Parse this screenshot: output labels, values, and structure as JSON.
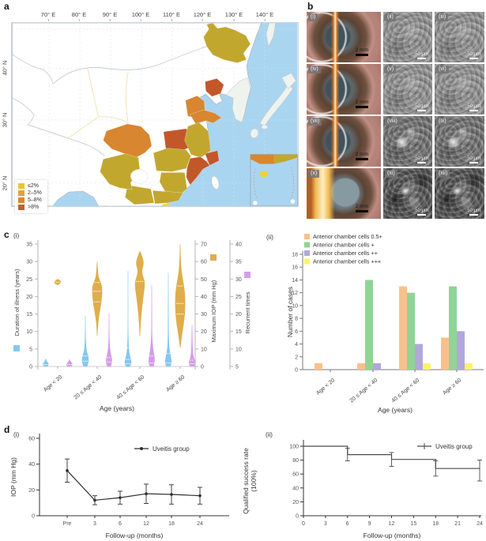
{
  "panels": {
    "a": {
      "label": "a"
    },
    "b": {
      "label": "b"
    },
    "c": {
      "label": "c",
      "sub_i": "(i)",
      "sub_ii": "(ii)"
    },
    "d": {
      "label": "d",
      "sub_i": "(i)",
      "sub_ii": "(ii)"
    }
  },
  "map": {
    "lon_labels": [
      "70° E",
      "80° E",
      "90° E",
      "100° E",
      "110° E",
      "120° E",
      "130° E",
      "140° E"
    ],
    "lat_labels": [
      "40° N",
      "30° N",
      "20° N"
    ],
    "legend": [
      {
        "label": "≤2%",
        "color": "#F2C12E"
      },
      {
        "label": "2–5%",
        "color": "#DDA33A"
      },
      {
        "label": "5–8%",
        "color": "#D98834"
      },
      {
        "label": ">8%",
        "color": "#C75F2E"
      }
    ],
    "region_palette": {
      "yellow": "#F2D32B",
      "olive": "#C2A72F",
      "orange": "#D8862F",
      "red": "#C2582A"
    },
    "sea_color": "#A9D5F1",
    "land_color": "#FFFFFF",
    "neighbor_color": "#EFF3EE"
  },
  "panel_b": {
    "cells": [
      {
        "label": "(i)",
        "scale": "2 mm",
        "type": "eye"
      },
      {
        "label": "(ii)",
        "scale": "50 μm",
        "type": "micro-light"
      },
      {
        "label": "(iii)",
        "scale": "50 μm",
        "type": "micro-light"
      },
      {
        "label": "(iv)",
        "scale": "2 mm",
        "type": "eye"
      },
      {
        "label": "(v)",
        "scale": "50 μm",
        "type": "micro-light"
      },
      {
        "label": "(vi)",
        "scale": "50 μm",
        "type": "micro-light"
      },
      {
        "label": "(vii)",
        "scale": "2 mm",
        "type": "eye"
      },
      {
        "label": "(viii)",
        "scale": "50 μm",
        "type": "micro-mid"
      },
      {
        "label": "(ix)",
        "scale": "50 μm",
        "type": "micro-mid"
      },
      {
        "label": "(x)",
        "scale": "2 mm",
        "type": "eye-x"
      },
      {
        "label": "(xi)",
        "scale": "50 μm",
        "type": "micro-dark"
      },
      {
        "label": "(xii)",
        "scale": "50 μm",
        "type": "micro-dark"
      }
    ]
  },
  "chart_data": [
    {
      "id": "c-i",
      "type": "violin",
      "categories": [
        "Age < 20",
        "20 ≤ Age < 40",
        "40 ≤ Age < 60",
        "Age ≥ 60"
      ],
      "xlabel": "Age (years)",
      "axes": [
        {
          "label": "Duration of illness (years)",
          "color": "#85C7F0",
          "range": [
            0,
            35
          ],
          "ticks": [
            0,
            5,
            10,
            15,
            20,
            25,
            30,
            35
          ]
        },
        {
          "label": "Maximum IOP (mm Hg)",
          "color": "#DFAD4B",
          "range": [
            0,
            70
          ],
          "ticks": [
            0,
            10,
            20,
            30,
            40,
            50,
            60,
            70
          ]
        },
        {
          "label": "Recurrent times",
          "color": "#D59CE8",
          "range": [
            5,
            40
          ],
          "ticks": [
            5,
            10,
            15,
            20,
            25,
            30,
            35,
            40
          ]
        }
      ],
      "series": [
        {
          "name": "Duration of illness",
          "axis": 0,
          "color": "#85C7F0",
          "violins": [
            {
              "profile": [
                [
                  0,
                  0.5
                ],
                [
                  0.6,
                  1
                ],
                [
                  1.5,
                  0.25
                ],
                [
                  2.2,
                  0
                ]
              ],
              "marks": [
                0.5
              ]
            },
            {
              "profile": [
                [
                  0,
                  0.55
                ],
                [
                  1,
                  0.9
                ],
                [
                  2.5,
                  1
                ],
                [
                  4,
                  0.45
                ],
                [
                  6,
                  0.2
                ],
                [
                  9,
                  0.1
                ],
                [
                  14.5,
                  0
                ]
              ],
              "marks": [
                1.5,
                3
              ]
            },
            {
              "profile": [
                [
                  0,
                  0.6
                ],
                [
                  0.8,
                  1
                ],
                [
                  2,
                  0.85
                ],
                [
                  4,
                  0.35
                ],
                [
                  7,
                  0.15
                ],
                [
                  12,
                  0.07
                ],
                [
                  27.3,
                  0
                ]
              ],
              "marks": [
                0.8,
                2,
                5.3
              ]
            },
            {
              "profile": [
                [
                  0,
                  0.6
                ],
                [
                  1,
                  1
                ],
                [
                  3,
                  0.7
                ],
                [
                  5,
                  0.3
                ],
                [
                  9,
                  0.12
                ],
                [
                  26.8,
                  0
                ]
              ],
              "marks": [
                1,
                3.7
              ]
            }
          ]
        },
        {
          "name": "Maximum IOP",
          "axis": 1,
          "color": "#DFAD4B",
          "violins": [
            {
              "profile": [
                [
                  46.5,
                  0
                ],
                [
                  48.2,
                  1
                ],
                [
                  50,
                  0
                ]
              ],
              "marks": [
                48.2
              ]
            },
            {
              "profile": [
                [
                  17.4,
                  0
                ],
                [
                  25,
                  0.15
                ],
                [
                  36,
                  0.8
                ],
                [
                  42,
                  1
                ],
                [
                  46,
                  0.95
                ],
                [
                  49,
                  0.55
                ],
                [
                  52,
                  0.2
                ],
                [
                  60,
                  0
                ]
              ],
              "marks": [
                37,
                43,
                48
              ]
            },
            {
              "profile": [
                [
                  17.2,
                  0
                ],
                [
                  25,
                  0.15
                ],
                [
                  38,
                  0.6
                ],
                [
                  44,
                  0.9
                ],
                [
                  48.5,
                  1
                ],
                [
                  52,
                  0.55
                ],
                [
                  55,
                  0.4
                ],
                [
                  58,
                  0.75
                ],
                [
                  61,
                  0.7
                ],
                [
                  66,
                  0
                ]
              ],
              "marks": [
                48.6
              ]
            },
            {
              "profile": [
                [
                  10.5,
                  0
                ],
                [
                  16,
                  0.25
                ],
                [
                  24,
                  0.7
                ],
                [
                  31,
                  0.95
                ],
                [
                  36,
                  1
                ],
                [
                  42,
                  0.95
                ],
                [
                  48,
                  0.65
                ],
                [
                  54,
                  0.3
                ],
                [
                  60,
                  0.12
                ],
                [
                  70,
                  0
                ]
              ],
              "marks": [
                30,
                36,
                46
              ]
            }
          ]
        },
        {
          "name": "Recurrent times",
          "axis": 2,
          "color": "#D59CE8",
          "violins": [
            {
              "profile": [
                [
                  5,
                  0.6
                ],
                [
                  5.6,
                  1
                ],
                [
                  6.5,
                  0.25
                ],
                [
                  7,
                  0
                ]
              ],
              "marks": [
                5.5
              ]
            },
            {
              "profile": [
                [
                  5,
                  0.55
                ],
                [
                  6.5,
                  1
                ],
                [
                  8.5,
                  0.5
                ],
                [
                  11,
                  0.2
                ],
                [
                  15,
                  0.08
                ],
                [
                  20.3,
                  0
                ]
              ],
              "marks": [
                6.3,
                7.5
              ]
            },
            {
              "profile": [
                [
                  5,
                  0.55
                ],
                [
                  6.5,
                  1
                ],
                [
                  9,
                  0.55
                ],
                [
                  12,
                  0.2
                ],
                [
                  17,
                  0.08
                ],
                [
                  28.2,
                  0
                ]
              ],
              "marks": [
                6,
                8
              ]
            },
            {
              "profile": [
                [
                  5,
                  0.6
                ],
                [
                  6,
                  1
                ],
                [
                  7.5,
                  0.5
                ],
                [
                  9.5,
                  0.18
                ],
                [
                  17,
                  0
                ]
              ],
              "marks": [
                5.8,
                6.8
              ]
            }
          ]
        }
      ]
    },
    {
      "id": "c-ii",
      "type": "bar",
      "categories": [
        "Age < 20",
        "20 ≤ Age < 40",
        "40 ≤ Age < 60",
        "Age ≥ 60"
      ],
      "xlabel": "Age (years)",
      "ylabel": "Number of cases",
      "ylim": [
        0,
        18
      ],
      "yticks": [
        0,
        2,
        4,
        6,
        8,
        10,
        12,
        14,
        16,
        18
      ],
      "series": [
        {
          "name": "Anterior chamber cells 0.5+",
          "color": "#F9C08C",
          "values": [
            1,
            1,
            13,
            5
          ]
        },
        {
          "name": "Anterior chamber cells +",
          "color": "#90D496",
          "values": [
            0,
            14,
            12,
            13
          ]
        },
        {
          "name": "Anterior chamber cells ++",
          "color": "#B1A8D9",
          "values": [
            0,
            1,
            4,
            6
          ]
        },
        {
          "name": "Anterior chamber cells +++",
          "color": "#FBF36E",
          "values": [
            0,
            0,
            1,
            1
          ]
        }
      ]
    },
    {
      "id": "d-i",
      "type": "line",
      "categories": [
        "Pre",
        "3",
        "6",
        "12",
        "18",
        "24"
      ],
      "xlabel": "Follow-up (months)",
      "ylabel": "IOP (mm Hg)",
      "ylim": [
        0,
        60
      ],
      "yticks": [
        0,
        20,
        40,
        60
      ],
      "legend": "Uveitis group",
      "series": [
        {
          "name": "Uveitis group",
          "color": "#2E2E2E",
          "values": [
            35,
            12,
            14,
            17,
            16.5,
            15.5
          ],
          "errors": [
            9,
            3.5,
            5,
            7.5,
            7.5,
            6.5
          ]
        }
      ]
    },
    {
      "id": "d-ii",
      "type": "step",
      "xlabel": "Follow-up (months)",
      "ylabel_lines": [
        "Qualified success rate",
        "(100%)"
      ],
      "xlim": [
        0,
        24
      ],
      "xticks": [
        0,
        3,
        6,
        9,
        12,
        15,
        18,
        21,
        24
      ],
      "ylim": [
        0,
        100
      ],
      "yticks": [
        0,
        20,
        40,
        60,
        80,
        100
      ],
      "legend": "Uveitis group",
      "series": [
        {
          "name": "Uveitis group",
          "color": "#4A4A4A",
          "points": [
            [
              0,
              100
            ],
            [
              6,
              100
            ],
            [
              6,
              88
            ],
            [
              12,
              88
            ],
            [
              12,
              81
            ],
            [
              18,
              81
            ],
            [
              18,
              68
            ],
            [
              24,
              68
            ]
          ],
          "error_bars": [
            {
              "x": 6,
              "y": 88,
              "lo": 79,
              "hi": 97
            },
            {
              "x": 12,
              "y": 81,
              "lo": 71,
              "hi": 91
            },
            {
              "x": 18,
              "y": 68,
              "lo": 57,
              "hi": 79
            },
            {
              "x": 24,
              "y": 68,
              "lo": 50,
              "hi": 80
            }
          ]
        }
      ]
    }
  ]
}
